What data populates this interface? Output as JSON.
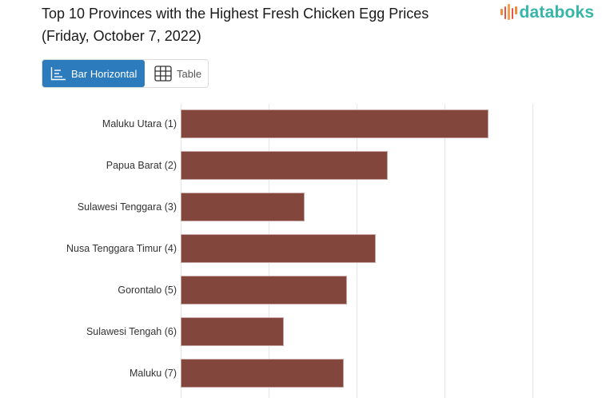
{
  "header": {
    "title_line1": "Top 10 Provinces with the Highest Fresh Chicken Egg Prices",
    "title_line2": "(Friday, October 7, 2022)"
  },
  "logo": {
    "text": "databoks",
    "icon": "databoks-bars-icon",
    "text_color": "#35b6a8",
    "bar_colors": [
      "#f08a3c",
      "#e8534a",
      "#f08a3c",
      "#e8534a",
      "#f5a04a"
    ]
  },
  "view_toggle": {
    "options": [
      {
        "label": "Bar Horizontal",
        "icon": "bar-horizontal-icon",
        "active": true
      },
      {
        "label": "Table",
        "icon": "table-grid-icon",
        "active": false
      }
    ],
    "active_color": "#2b7bbd"
  },
  "chart_data": {
    "type": "bar",
    "orientation": "horizontal",
    "title": "Top 10 Provinces with the Highest Fresh Chicken Egg Prices (Friday, October 7, 2022)",
    "xlabel": "",
    "ylabel": "",
    "categories": [
      "Maluku Utara (1)",
      "Papua Barat (2)",
      "Sulawesi Tenggara (3)",
      "Nusa Tenggara Timur (4)",
      "Gorontalo (5)",
      "Sulawesi Tengah (6)",
      "Maluku (7)"
    ],
    "values": [
      3.5,
      2.35,
      1.41,
      2.22,
      1.89,
      1.17,
      1.85
    ],
    "value_units": "gridline intervals (axis tick labels not visible)",
    "gridlines_x": [
      0,
      1,
      2,
      3,
      4
    ],
    "grid": true,
    "legend": "none",
    "bar_color": "#82463c",
    "note": "Only 7 of 10 categories visible in viewport"
  }
}
